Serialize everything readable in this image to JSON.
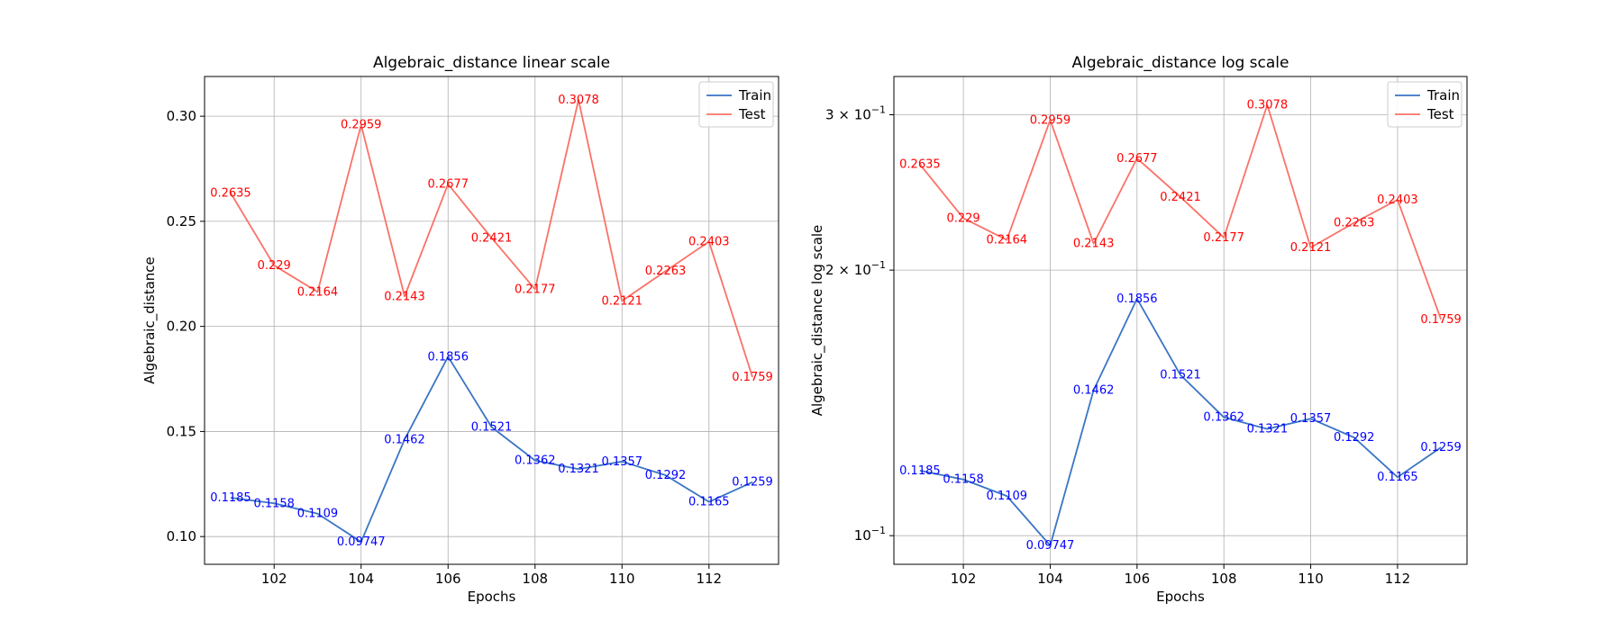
{
  "chart_data": [
    {
      "type": "line",
      "title": "Algebraic_distance linear scale",
      "xlabel": "Epochs",
      "ylabel": "Algebraic_distance",
      "yscale": "linear",
      "xlim": [
        100.4,
        113.6
      ],
      "ylim": [
        0.0868,
        0.3189
      ],
      "xticks": [
        102,
        104,
        106,
        108,
        110,
        112
      ],
      "xtick_labels": [
        "102",
        "104",
        "106",
        "108",
        "110",
        "112"
      ],
      "yticks": [
        0.1,
        0.15,
        0.2,
        0.25,
        0.3
      ],
      "ytick_labels": [
        "0.10",
        "0.15",
        "0.20",
        "0.25",
        "0.30"
      ],
      "grid": true,
      "legend_position": "top-right",
      "x": [
        101,
        102,
        103,
        104,
        105,
        106,
        107,
        108,
        109,
        110,
        111,
        112,
        113
      ],
      "series": [
        {
          "name": "Train",
          "color": "#3a75c4",
          "label_color": "#0000ff",
          "values": [
            0.1185,
            0.1158,
            0.1109,
            0.09747,
            0.1462,
            0.1856,
            0.1521,
            0.1362,
            0.1321,
            0.1357,
            0.1292,
            0.1165,
            0.1259
          ],
          "labels": [
            "0.1185",
            "0.1158",
            "0.1109",
            "0.09747",
            "0.1462",
            "0.1856",
            "0.1521",
            "0.1362",
            "0.1321",
            "0.1357",
            "0.1292",
            "0.1165",
            "0.1259"
          ]
        },
        {
          "name": "Test",
          "color": "#fa7268",
          "label_color": "#ff0000",
          "values": [
            0.2635,
            0.229,
            0.2164,
            0.2959,
            0.2143,
            0.2677,
            0.2421,
            0.2177,
            0.3078,
            0.2121,
            0.2263,
            0.2403,
            0.1759
          ],
          "labels": [
            "0.2635",
            "0.229",
            "0.2164",
            "0.2959",
            "0.2143",
            "0.2677",
            "0.2421",
            "0.2177",
            "0.3078",
            "0.2121",
            "0.2263",
            "0.2403",
            "0.1759"
          ]
        }
      ]
    },
    {
      "type": "line",
      "title": "Algebraic_distance log scale",
      "xlabel": "Epochs",
      "ylabel": "Algebraic_distance log scale",
      "yscale": "log",
      "xlim": [
        100.4,
        113.6
      ],
      "ylim": [
        0.0928,
        0.3315
      ],
      "xticks": [
        102,
        104,
        106,
        108,
        110,
        112
      ],
      "xtick_labels": [
        "102",
        "104",
        "106",
        "108",
        "110",
        "112"
      ],
      "yticks": [
        0.1,
        0.2,
        0.3
      ],
      "ytick_labels": [
        {
          "base": "10",
          "exp": "−1",
          "coef": ""
        },
        {
          "base": "10",
          "exp": "−1",
          "coef": "2 × "
        },
        {
          "base": "10",
          "exp": "−1",
          "coef": "3 × "
        }
      ],
      "grid": true,
      "legend_position": "top-right",
      "x": [
        101,
        102,
        103,
        104,
        105,
        106,
        107,
        108,
        109,
        110,
        111,
        112,
        113
      ],
      "series": [
        {
          "name": "Train",
          "color": "#3a75c4",
          "label_color": "#0000ff",
          "values": [
            0.1185,
            0.1158,
            0.1109,
            0.09747,
            0.1462,
            0.1856,
            0.1521,
            0.1362,
            0.1321,
            0.1357,
            0.1292,
            0.1165,
            0.1259
          ],
          "labels": [
            "0.1185",
            "0.1158",
            "0.1109",
            "0.09747",
            "0.1462",
            "0.1856",
            "0.1521",
            "0.1362",
            "0.1321",
            "0.1357",
            "0.1292",
            "0.1165",
            "0.1259"
          ]
        },
        {
          "name": "Test",
          "color": "#fa7268",
          "label_color": "#ff0000",
          "values": [
            0.2635,
            0.229,
            0.2164,
            0.2959,
            0.2143,
            0.2677,
            0.2421,
            0.2177,
            0.3078,
            0.2121,
            0.2263,
            0.2403,
            0.1759
          ],
          "labels": [
            "0.2635",
            "0.229",
            "0.2164",
            "0.2959",
            "0.2143",
            "0.2677",
            "0.2421",
            "0.2177",
            "0.3078",
            "0.2121",
            "0.2263",
            "0.2403",
            "0.1759"
          ]
        }
      ]
    }
  ]
}
